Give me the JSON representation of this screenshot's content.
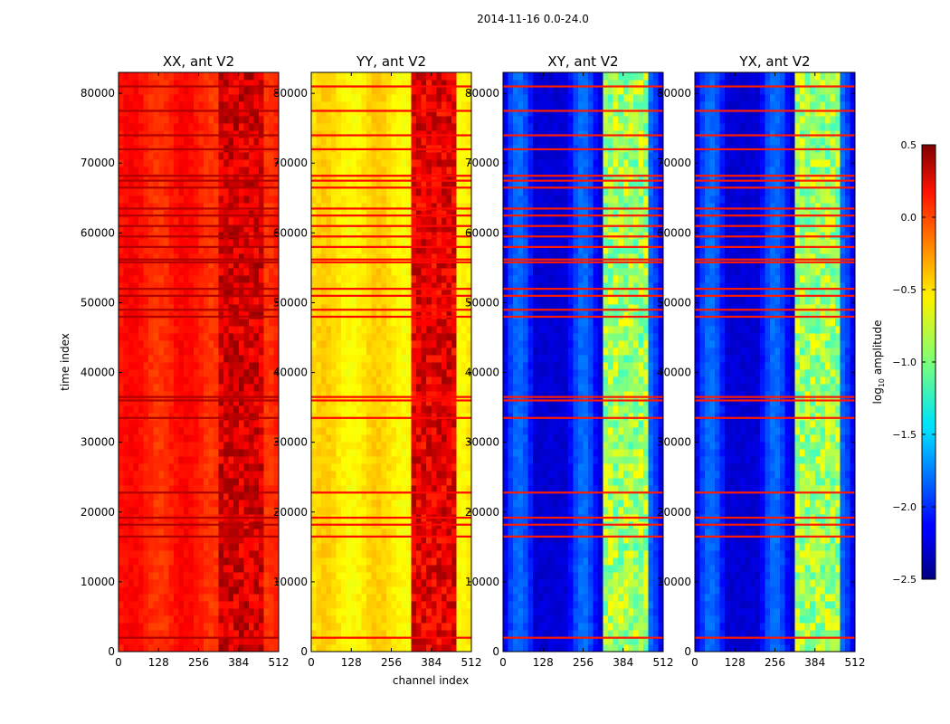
{
  "figure_title": "2014-11-16 0.0-24.0",
  "chart_data": {
    "type": "heatmap",
    "suptitle": "2014-11-16 0.0-24.0",
    "xlabel": "channel index",
    "ylabel": "time index",
    "xlim": [
      0,
      512
    ],
    "ylim": [
      0,
      83000
    ],
    "x_ticks": [
      0,
      128,
      256,
      384,
      512
    ],
    "y_ticks": [
      0,
      10000,
      20000,
      30000,
      40000,
      50000,
      60000,
      70000,
      80000
    ],
    "panels": [
      {
        "title": "XX, ant V2",
        "base_log_amplitude": 0.05,
        "band_log_amplitude": 0.25
      },
      {
        "title": "YY, ant V2",
        "base_log_amplitude": -0.55,
        "band_log_amplitude": 0.2
      },
      {
        "title": "XY, ant V2",
        "base_log_amplitude": -2.1,
        "band_log_amplitude": -0.9
      },
      {
        "title": "YX, ant V2",
        "base_log_amplitude": -2.1,
        "band_log_amplitude": -0.9
      }
    ],
    "rfi_band_channels": [
      320,
      460
    ],
    "flagged_time_rows": [
      2000,
      16500,
      18200,
      19200,
      22800,
      33500,
      36000,
      36500,
      48000,
      49000,
      51000,
      52000,
      55800,
      56200,
      58000,
      59500,
      61000,
      62500,
      63500,
      66500,
      67500,
      68200,
      72000,
      74000,
      77500,
      81000
    ],
    "colorbar": {
      "label": "log10 amplitude",
      "label_main": "log",
      "label_sub": "10",
      "label_rest": " amplitude",
      "min": -2.5,
      "max": 0.5,
      "ticks": [
        0.5,
        0.0,
        -0.5,
        -1.0,
        -1.5,
        -2.0,
        -2.5
      ],
      "tick_labels": [
        "0.5",
        "0.0",
        "−0.5",
        "−1.0",
        "−1.5",
        "−2.0",
        "−2.5"
      ],
      "colormap": "jet"
    }
  }
}
